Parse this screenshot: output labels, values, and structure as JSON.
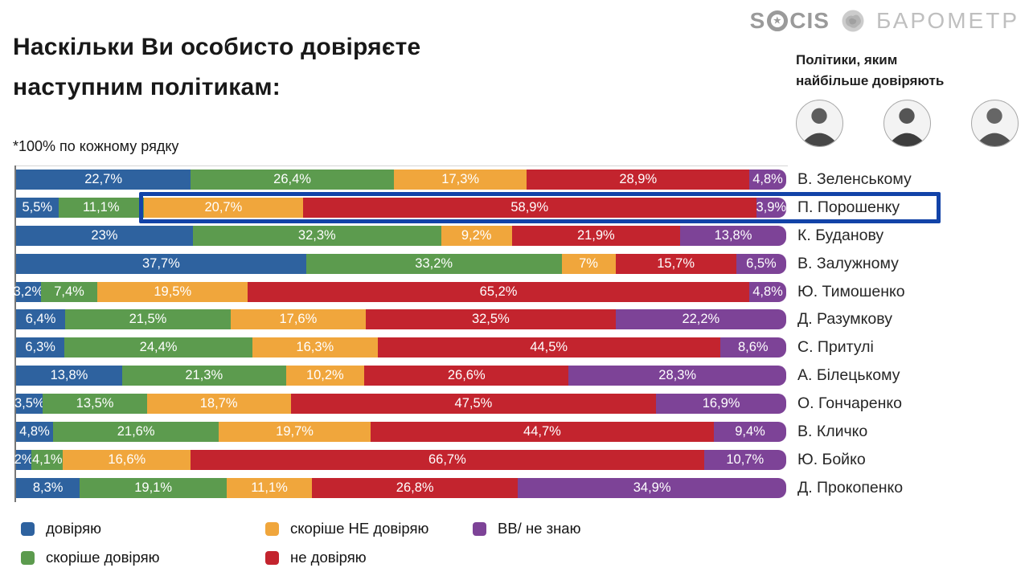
{
  "header": {
    "title_lines": [
      "Наскільки Ви особисто довіряєте",
      "наступним політикам:"
    ],
    "note": "*100% по кожному рядку"
  },
  "brand": {
    "socis_prefix": "S",
    "socis_suffix": "CIS",
    "barometer": "БАРОМЕТР",
    "logo_gray": "#9a9a9a"
  },
  "top_trusted": {
    "caption_lines": [
      "Політики, яким",
      "найбільше довіряють"
    ],
    "avatar_icons": [
      "portrait-photo-1",
      "portrait-photo-2",
      "portrait-photo-3"
    ]
  },
  "chart_data": {
    "type": "bar",
    "orientation": "horizontal-stacked",
    "unit": "%",
    "value_suffix": "%",
    "decimal_separator": ",",
    "xlim": [
      0,
      100
    ],
    "grid": false,
    "legend_position": "bottom",
    "categories": [
      "В. Зеленському",
      "П. Порошенку",
      "К. Буданову",
      "В. Залужному",
      "Ю. Тимошенко",
      "Д. Разумкову",
      "С. Притулі",
      "А. Білецькому",
      "О. Гончаренко",
      "В. Кличко",
      "Ю. Бойко",
      "Д. Прокопенко"
    ],
    "series": [
      {
        "name": "довіряю",
        "color": "#2e629f",
        "values": [
          22.7,
          5.5,
          23,
          37.7,
          3.2,
          6.4,
          6.3,
          13.8,
          3.5,
          4.8,
          2,
          8.3
        ]
      },
      {
        "name": "скоріше довіряю",
        "color": "#5c9b4e",
        "values": [
          26.4,
          11.1,
          32.3,
          33.2,
          7.4,
          21.5,
          24.4,
          21.3,
          13.5,
          21.6,
          4.1,
          19.1
        ]
      },
      {
        "name": "скоріше НЕ довіряю",
        "color": "#f0a63c",
        "values": [
          17.3,
          20.7,
          9.2,
          7,
          19.5,
          17.6,
          16.3,
          10.2,
          18.7,
          19.7,
          16.6,
          11.1
        ]
      },
      {
        "name": "не довіряю",
        "color": "#c3242e",
        "values": [
          28.9,
          58.9,
          21.9,
          15.7,
          65.2,
          32.5,
          44.5,
          26.6,
          47.5,
          44.7,
          66.7,
          26.8
        ]
      },
      {
        "name": "ВВ/ не знаю",
        "color": "#7d4397",
        "values": [
          4.8,
          3.9,
          13.8,
          6.5,
          4.8,
          22.2,
          8.6,
          28.3,
          16.9,
          9.4,
          10.7,
          34.9
        ]
      }
    ],
    "highlight": {
      "category": "П. Порошенку",
      "from_series_index": 2,
      "color": "#1243a8"
    }
  }
}
